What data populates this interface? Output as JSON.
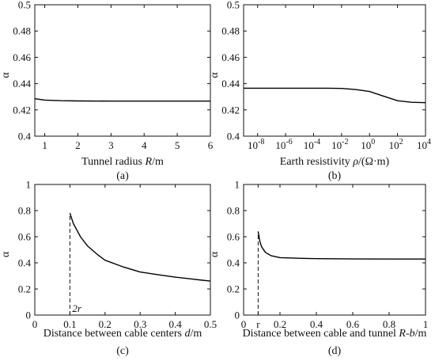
{
  "chart_data": [
    {
      "type": "line",
      "caption": "(a)",
      "xlabel": "Tunnel radius R/m",
      "ylabel": "α",
      "xlim": [
        0.7,
        6
      ],
      "ylim": [
        0.4,
        0.5
      ],
      "xticks": [
        1,
        2,
        3,
        4,
        5,
        6
      ],
      "xtick_labels": [
        "1",
        "2",
        "3",
        "4",
        "5",
        "6"
      ],
      "yticks": [
        0.4,
        0.42,
        0.44,
        0.46,
        0.48,
        0.5
      ],
      "ytick_labels": [
        "0.4",
        "0.42",
        "0.44",
        "0.46",
        "0.48",
        "0.5"
      ],
      "series": [
        {
          "x": [
            0.7,
            1.0,
            1.5,
            2.0,
            3.0,
            4.0,
            5.0,
            6.0
          ],
          "y": [
            0.4285,
            0.4275,
            0.427,
            0.4268,
            0.4267,
            0.4267,
            0.4267,
            0.4267
          ]
        }
      ]
    },
    {
      "type": "line",
      "caption": "(b)",
      "xlabel": "Earth resistivity ρ/(Ω·m)",
      "ylabel": "α",
      "xscale": "log",
      "xlim": [
        1e-09,
        10000.0
      ],
      "ylim": [
        0.4,
        0.5
      ],
      "xticks": [
        1e-08,
        1e-06,
        0.0001,
        0.01,
        1,
        100,
        10000
      ],
      "xtick_labels": [
        [
          "10",
          "-8"
        ],
        [
          "10",
          "-6"
        ],
        [
          "10",
          "-4"
        ],
        [
          "10",
          "-2"
        ],
        [
          "10",
          "0"
        ],
        [
          "10",
          "2"
        ],
        [
          "10",
          "4"
        ]
      ],
      "yticks": [
        0.4,
        0.42,
        0.44,
        0.46,
        0.48,
        0.5
      ],
      "ytick_labels": [
        "0.4",
        "0.42",
        "0.44",
        "0.46",
        "0.48",
        "0.5"
      ],
      "series": [
        {
          "x": [
            1e-09,
            1e-06,
            0.001,
            0.01,
            0.1,
            1,
            10,
            100,
            1000,
            10000
          ],
          "y": [
            0.4365,
            0.4365,
            0.4365,
            0.4363,
            0.4355,
            0.434,
            0.4305,
            0.427,
            0.4258,
            0.4255
          ]
        }
      ]
    },
    {
      "type": "line",
      "caption": "(c)",
      "xlabel": "Distance between cable centers d/m",
      "ylabel": "α",
      "xlim": [
        0,
        0.5
      ],
      "ylim": [
        0,
        1
      ],
      "xticks": [
        0,
        0.1,
        0.2,
        0.3,
        0.4,
        0.5
      ],
      "xtick_labels": [
        "0",
        "0.1",
        "0.2",
        "0.3",
        "0.4",
        "0.5"
      ],
      "yticks": [
        0,
        0.2,
        0.4,
        0.6,
        0.8,
        1
      ],
      "ytick_labels": [
        "0",
        "0.2",
        "0.4",
        "0.6",
        "0.8",
        "1"
      ],
      "annotation": {
        "x": 0.1,
        "label": "2r"
      },
      "series": [
        {
          "x": [
            0.1,
            0.11,
            0.12,
            0.13,
            0.15,
            0.18,
            0.2,
            0.25,
            0.3,
            0.35,
            0.4,
            0.45,
            0.5
          ],
          "y": [
            0.78,
            0.7,
            0.65,
            0.6,
            0.53,
            0.46,
            0.42,
            0.37,
            0.33,
            0.31,
            0.29,
            0.275,
            0.26
          ]
        }
      ]
    },
    {
      "type": "line",
      "caption": "(d)",
      "xlabel": "Distance between cable and tunnel R-b/m",
      "ylabel": "α",
      "xlim": [
        0,
        1
      ],
      "ylim": [
        0,
        1
      ],
      "xticks": [
        0,
        0.08,
        0.2,
        0.4,
        0.6,
        0.8,
        1
      ],
      "xtick_labels": [
        "0",
        "r",
        "0.2",
        "0.4",
        "0.6",
        "0.8",
        "1"
      ],
      "yticks": [
        0,
        0.2,
        0.4,
        0.6,
        0.8,
        1
      ],
      "ytick_labels": [
        "0",
        "0.2",
        "0.4",
        "0.6",
        "0.8",
        "1"
      ],
      "annotation": {
        "x": 0.08,
        "label": ""
      },
      "series": [
        {
          "x": [
            0.08,
            0.09,
            0.1,
            0.12,
            0.15,
            0.2,
            0.3,
            0.4,
            0.6,
            0.8,
            1.0
          ],
          "y": [
            0.64,
            0.56,
            0.52,
            0.48,
            0.455,
            0.44,
            0.435,
            0.432,
            0.43,
            0.429,
            0.429
          ]
        }
      ]
    }
  ]
}
